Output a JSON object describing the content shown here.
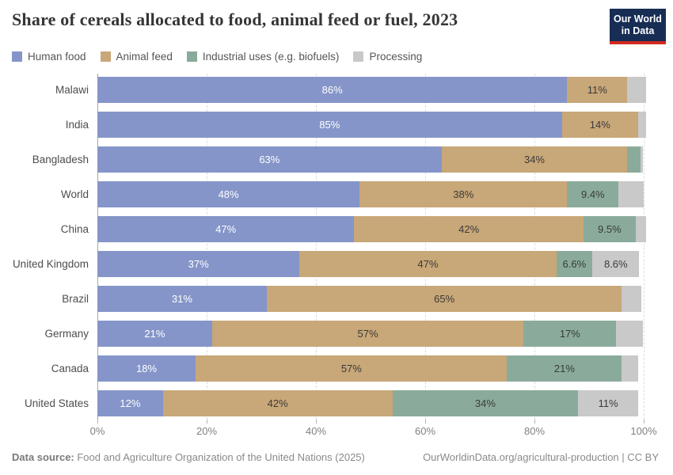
{
  "header": {
    "logo": {
      "line1": "Our World",
      "line2": "in Data",
      "bg_color": "#172d54",
      "stripe_color": "#d12b1f"
    }
  },
  "chart_data": {
    "type": "bar",
    "orientation": "horizontal",
    "stacked": true,
    "title": "Share of cereals allocated to food, animal feed or fuel, 2023",
    "unit": "%",
    "xlim": [
      0,
      100
    ],
    "x_ticks": [
      "0%",
      "20%",
      "40%",
      "60%",
      "80%",
      "100%"
    ],
    "grid": "dashed-vertical",
    "legend_position": "top",
    "value_label_threshold": 6,
    "categories": [
      "Malawi",
      "India",
      "Bangladesh",
      "World",
      "China",
      "United Kingdom",
      "Brazil",
      "Germany",
      "Canada",
      "United States"
    ],
    "series": [
      {
        "name": "Human food",
        "color": "#8595c9",
        "label_color": "#ffffff",
        "values": [
          86,
          85,
          63,
          48,
          47,
          37,
          31,
          21,
          18,
          12
        ]
      },
      {
        "name": "Animal feed",
        "color": "#c8a778",
        "label_color": "#3a3a3a",
        "values": [
          11,
          14,
          34,
          38,
          42,
          47,
          65,
          57,
          57,
          42
        ]
      },
      {
        "name": "Industrial uses (e.g. biofuels)",
        "color": "#8aab9b",
        "label_color": "#3a3a3a",
        "values": [
          0,
          0,
          2.4,
          9.4,
          9.5,
          6.6,
          0,
          17,
          21,
          34
        ]
      },
      {
        "name": "Processing",
        "color": "#c9c9c9",
        "label_color": "#3a3a3a",
        "values": [
          3.5,
          1.5,
          0.5,
          4.6,
          2,
          8.6,
          3.6,
          4.8,
          3,
          11
        ]
      }
    ],
    "visible_value_labels": {
      "Malawi": [
        "86%",
        "11%"
      ],
      "India": [
        "85%",
        "14%"
      ],
      "Bangladesh": [
        "63%",
        "34%"
      ],
      "World": [
        "48%",
        "38%",
        "9.4%"
      ],
      "China": [
        "47%",
        "42%",
        "9.5%"
      ],
      "United Kingdom": [
        "37%",
        "47%",
        "6.6%",
        "8.6%"
      ],
      "Brazil": [
        "31%",
        "65%"
      ],
      "Germany": [
        "21%",
        "57%",
        "17%"
      ],
      "Canada": [
        "18%",
        "57%",
        "21%"
      ],
      "United States": [
        "12%",
        "42%",
        "34%",
        "11%"
      ]
    }
  },
  "footer": {
    "source_label": "Data source:",
    "source_text": " Food and Agriculture Organization of the United Nations (2025)",
    "link_text": "OurWorldinData.org/agricultural-production | CC BY"
  }
}
